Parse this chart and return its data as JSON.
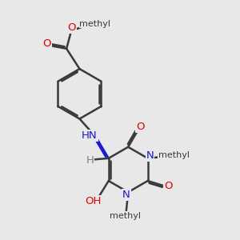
{
  "bg_color": "#e8e8e8",
  "bond_color": "#3a3a3a",
  "bond_width": 1.8,
  "atom_colors": {
    "N": "#1a1acd",
    "O": "#dd0000",
    "H": "#708090",
    "C": "#3a3a3a"
  },
  "figsize": [
    3.0,
    3.0
  ],
  "dpi": 100,
  "xlim": [
    0,
    10
  ],
  "ylim": [
    0,
    10
  ]
}
